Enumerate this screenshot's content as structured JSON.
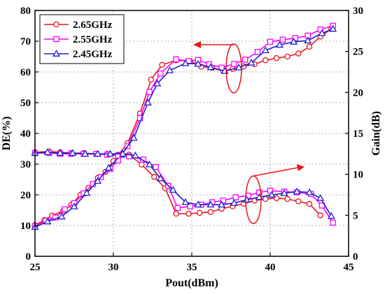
{
  "chart_data": {
    "type": "line",
    "xlabel": "Pout(dBm)",
    "ylabel_left": "DE(%)",
    "ylabel_right": "Gain(dB)",
    "xlim": [
      25,
      45
    ],
    "ylim_left": [
      0,
      80
    ],
    "ylim_right": [
      0,
      30
    ],
    "x_ticks": [
      "25",
      "30",
      "35",
      "40",
      "45"
    ],
    "y_left_ticks": [
      "0",
      "10",
      "20",
      "30",
      "40",
      "50",
      "60",
      "70",
      "80"
    ],
    "y_right_ticks": [
      "0",
      "5",
      "10",
      "15",
      "20",
      "25",
      "30"
    ],
    "grid": true,
    "legend_position": "top-left",
    "colors": {
      "2.65GHz": "#e8141b",
      "2.55GHz": "#ff00ff",
      "2.45GHz": "#1d1dd0",
      "annotation": "#e8141b"
    },
    "series": [
      {
        "name": "2.65GHz",
        "marker": "circle",
        "axis": "left",
        "metric": "DE",
        "x": [
          25.0,
          25.6,
          26.1,
          26.8,
          27.3,
          27.9,
          28.4,
          29.0,
          29.5,
          30.0,
          30.9,
          31.7,
          32.4,
          33.1,
          34.0,
          34.9,
          35.6,
          36.3,
          37.0,
          37.6,
          38.3,
          39.0,
          39.7,
          40.4,
          41.1,
          41.8,
          42.5,
          43.2,
          43.9
        ],
        "y": [
          10.1,
          11.8,
          13.2,
          14.8,
          16.7,
          20.0,
          22.3,
          25.5,
          27.5,
          31.0,
          36.8,
          46.5,
          57.5,
          62.3,
          63.8,
          63.5,
          61.7,
          61.3,
          60.3,
          61.0,
          61.8,
          62.5,
          63.8,
          64.5,
          65.0,
          66.0,
          68.2,
          71.5,
          74.0
        ]
      },
      {
        "name": "2.55GHz",
        "marker": "square",
        "axis": "left",
        "metric": "DE",
        "x": [
          25.0,
          25.7,
          26.3,
          26.9,
          27.5,
          28.1,
          28.7,
          29.2,
          29.8,
          30.3,
          30.9,
          31.7,
          32.3,
          33.0,
          34.0,
          34.8,
          35.4,
          36.1,
          36.9,
          37.7,
          38.4,
          39.2,
          40.0,
          40.8,
          41.6,
          42.4,
          43.2,
          44.0
        ],
        "y": [
          9.8,
          11.6,
          12.6,
          15.3,
          17.3,
          20.5,
          23.5,
          25.8,
          28.5,
          31.2,
          35.8,
          45.0,
          53.5,
          59.5,
          64.1,
          63.5,
          63.9,
          62.5,
          61.4,
          62.6,
          64.0,
          66.5,
          69.8,
          70.5,
          71.0,
          71.8,
          73.8,
          75.0
        ]
      },
      {
        "name": "2.45GHz",
        "marker": "triangle",
        "axis": "left",
        "metric": "DE",
        "x": [
          25.0,
          25.8,
          26.7,
          27.5,
          28.3,
          29.0,
          29.7,
          30.5,
          31.3,
          32.2,
          32.8,
          33.6,
          34.6,
          35.4,
          36.2,
          37.1,
          38.0,
          38.8,
          39.7,
          40.6,
          41.5,
          42.4,
          43.3,
          44.0
        ],
        "y": [
          9.5,
          11.3,
          12.9,
          16.2,
          20.6,
          24.5,
          28.8,
          33.0,
          38.5,
          50.0,
          56.2,
          60.5,
          62.8,
          62.6,
          61.5,
          60.3,
          61.4,
          63.0,
          67.0,
          68.8,
          69.8,
          70.2,
          72.6,
          74.0
        ]
      },
      {
        "name": "2.65GHz",
        "marker": "circle",
        "axis": "right",
        "metric": "Gain",
        "x": [
          25.0,
          25.9,
          26.6,
          27.3,
          28.1,
          28.9,
          29.6,
          30.3,
          31.0,
          31.8,
          32.6,
          33.3,
          34.0,
          34.8,
          35.5,
          36.2,
          36.9,
          37.6,
          38.3,
          39.0,
          39.7,
          40.4,
          41.1,
          41.8,
          42.5,
          43.2
        ],
        "y": [
          12.7,
          12.8,
          12.7,
          12.6,
          12.6,
          12.5,
          12.5,
          12.4,
          12.4,
          11.2,
          9.7,
          8.3,
          5.2,
          5.2,
          5.3,
          5.4,
          5.8,
          6.1,
          6.4,
          6.8,
          7.0,
          7.1,
          7.0,
          6.7,
          6.4,
          5.0
        ]
      },
      {
        "name": "2.55GHz",
        "marker": "square",
        "axis": "right",
        "metric": "Gain",
        "x": [
          25.0,
          25.9,
          26.6,
          27.3,
          28.1,
          28.9,
          29.6,
          30.3,
          31.0,
          31.9,
          32.7,
          33.5,
          34.1,
          34.9,
          35.6,
          36.3,
          37.0,
          37.8,
          38.6,
          39.3,
          40.0,
          40.9,
          41.7,
          42.6,
          43.3,
          44.0
        ],
        "y": [
          12.6,
          12.6,
          12.5,
          12.5,
          12.5,
          12.5,
          12.4,
          12.3,
          12.2,
          11.8,
          10.9,
          8.6,
          5.9,
          6.1,
          6.3,
          6.6,
          6.8,
          7.2,
          7.4,
          7.8,
          8.0,
          7.9,
          7.8,
          7.6,
          6.2,
          4.1
        ]
      },
      {
        "name": "2.45GHz",
        "marker": "triangle",
        "axis": "right",
        "metric": "Gain",
        "x": [
          25.0,
          25.8,
          26.6,
          27.4,
          28.2,
          29.0,
          29.8,
          30.6,
          31.4,
          32.3,
          33.0,
          33.8,
          34.6,
          35.4,
          36.2,
          36.9,
          37.7,
          38.5,
          39.3,
          40.1,
          40.9,
          41.7,
          42.5,
          43.2,
          43.9
        ],
        "y": [
          12.6,
          12.7,
          12.6,
          12.6,
          12.5,
          12.5,
          12.5,
          12.5,
          12.3,
          11.2,
          9.5,
          8.1,
          6.6,
          6.3,
          6.3,
          6.3,
          6.5,
          6.9,
          7.2,
          7.5,
          7.7,
          7.9,
          7.8,
          7.1,
          4.9
        ]
      }
    ],
    "annotations": [
      {
        "type": "ellipse-arrow",
        "points_to": "left axis (DE)"
      },
      {
        "type": "ellipse-arrow",
        "points_to": "right axis (Gain)"
      }
    ]
  }
}
